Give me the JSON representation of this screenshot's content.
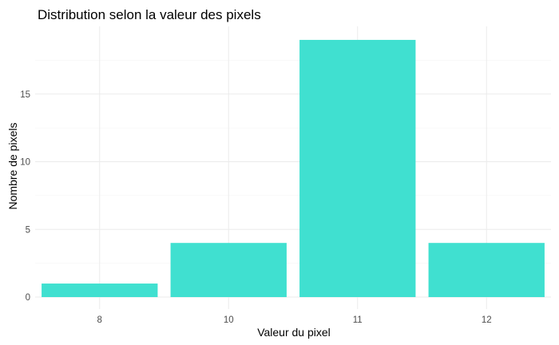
{
  "chart_data": {
    "type": "bar",
    "title": "Distribution selon la valeur des pixels",
    "xlabel": "Valeur du pixel",
    "ylabel": "Nombre de pixels",
    "categories": [
      "8",
      "10",
      "11",
      "12"
    ],
    "values": [
      1,
      4,
      19,
      4
    ],
    "yticks": [
      0,
      5,
      10,
      15
    ],
    "ylim": [
      0,
      19
    ],
    "grid": true,
    "bar_color": "#40E0D0"
  }
}
